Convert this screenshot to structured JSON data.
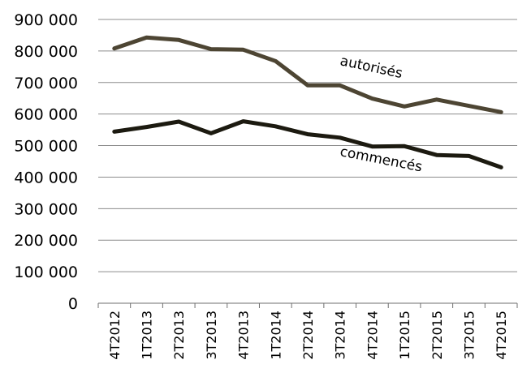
{
  "chart_data": {
    "type": "line",
    "categories": [
      "4T2012",
      "1T2013",
      "2T2013",
      "3T2013",
      "4T2013",
      "1T2014",
      "2T2014",
      "3T2014",
      "4T2014",
      "1T2015",
      "2T2015",
      "3T2015",
      "4T2015"
    ],
    "series": [
      {
        "name": "autorisés",
        "values": [
          808000,
          843000,
          835000,
          806000,
          804000,
          768000,
          691000,
          691000,
          649000,
          624000,
          646000,
          626000,
          606000
        ],
        "color": "#4d4533"
      },
      {
        "name": "commencés",
        "values": [
          544000,
          559000,
          576000,
          539000,
          577000,
          561000,
          536000,
          525000,
          497000,
          498000,
          470000,
          467000,
          431000
        ],
        "color": "#1c1a10"
      }
    ],
    "yticks": [
      "0",
      "100 000",
      "200 000",
      "300 000",
      "400 000",
      "500 000",
      "600 000",
      "700 000",
      "800 000",
      "900 000"
    ],
    "ylim": [
      0,
      900000
    ],
    "grid": true,
    "legend": "inline labels",
    "title": "",
    "xlabel": "",
    "ylabel": ""
  }
}
